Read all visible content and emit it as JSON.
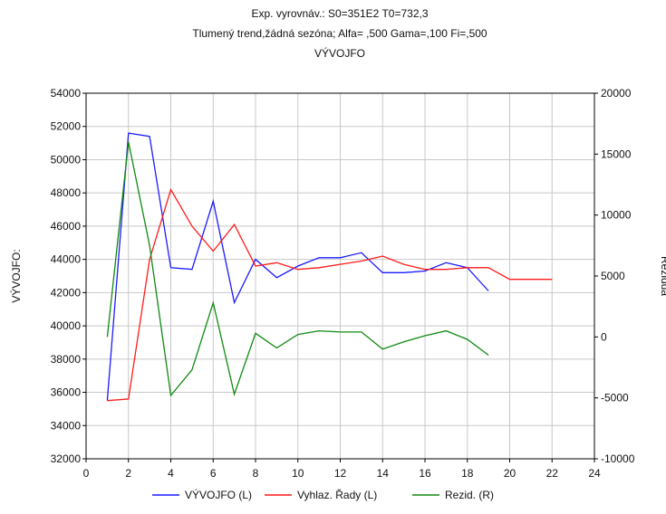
{
  "chart_data": {
    "type": "line",
    "title": "Exp. vyrovnáv.: S0=351E2 T0=732,3",
    "subtitle": "Tlumený trend,žádná sezóna; Alfa= ,500 Gama=,100 Fi=,500",
    "subtitle2": "VÝVOJFO",
    "xlabel": "",
    "ylabel_left": "VÝVOJFO:",
    "ylabel_right": "Rezidua",
    "xlim": [
      0,
      24
    ],
    "ylim_left": [
      32000,
      54000
    ],
    "ylim_right": [
      -10000,
      20000
    ],
    "x_ticks": [
      "0",
      "2",
      "4",
      "6",
      "8",
      "10",
      "12",
      "14",
      "16",
      "18",
      "20",
      "22",
      "24"
    ],
    "y_left_ticks": [
      "32000",
      "34000",
      "36000",
      "38000",
      "40000",
      "42000",
      "44000",
      "46000",
      "48000",
      "50000",
      "52000",
      "54000"
    ],
    "y_right_ticks": [
      "-10000",
      "-5000",
      "0",
      "5000",
      "10000",
      "15000",
      "20000"
    ],
    "grid": true,
    "legend_position": "bottom",
    "series": [
      {
        "name": "VÝVOJFO (L)",
        "axis": "left",
        "color": "#1a1aff",
        "x": [
          1,
          2,
          3,
          4,
          5,
          6,
          7,
          8,
          9,
          10,
          11,
          12,
          13,
          14,
          15,
          16,
          17,
          18,
          19
        ],
        "y": [
          35500,
          51600,
          51400,
          43500,
          43400,
          47500,
          41400,
          44000,
          42900,
          43600,
          44100,
          44100,
          44400,
          43200,
          43200,
          43300,
          43800,
          43500,
          42100
        ]
      },
      {
        "name": "Vyhlaz. Řady (L)",
        "axis": "left",
        "color": "#ff1a1a",
        "x": [
          1,
          2,
          3,
          4,
          5,
          6,
          7,
          8,
          9,
          10,
          11,
          12,
          13,
          14,
          15,
          16,
          17,
          18,
          19,
          20,
          21,
          22
        ],
        "y": [
          35500,
          35600,
          44000,
          48200,
          46000,
          44500,
          46100,
          43600,
          43800,
          43400,
          43500,
          43700,
          43900,
          44200,
          43700,
          43400,
          43400,
          43500,
          43500,
          42800,
          42800,
          42800
        ]
      },
      {
        "name": "Rezid. (R)",
        "axis": "right",
        "color": "#118811",
        "x": [
          1,
          2,
          3,
          4,
          5,
          6,
          7,
          8,
          9,
          10,
          11,
          12,
          13,
          14,
          15,
          16,
          17,
          18,
          19
        ],
        "y": [
          0,
          16000,
          7500,
          -4800,
          -2700,
          2800,
          -4700,
          300,
          -900,
          200,
          500,
          400,
          400,
          -1000,
          -400,
          100,
          500,
          -200,
          -1500
        ]
      }
    ]
  }
}
